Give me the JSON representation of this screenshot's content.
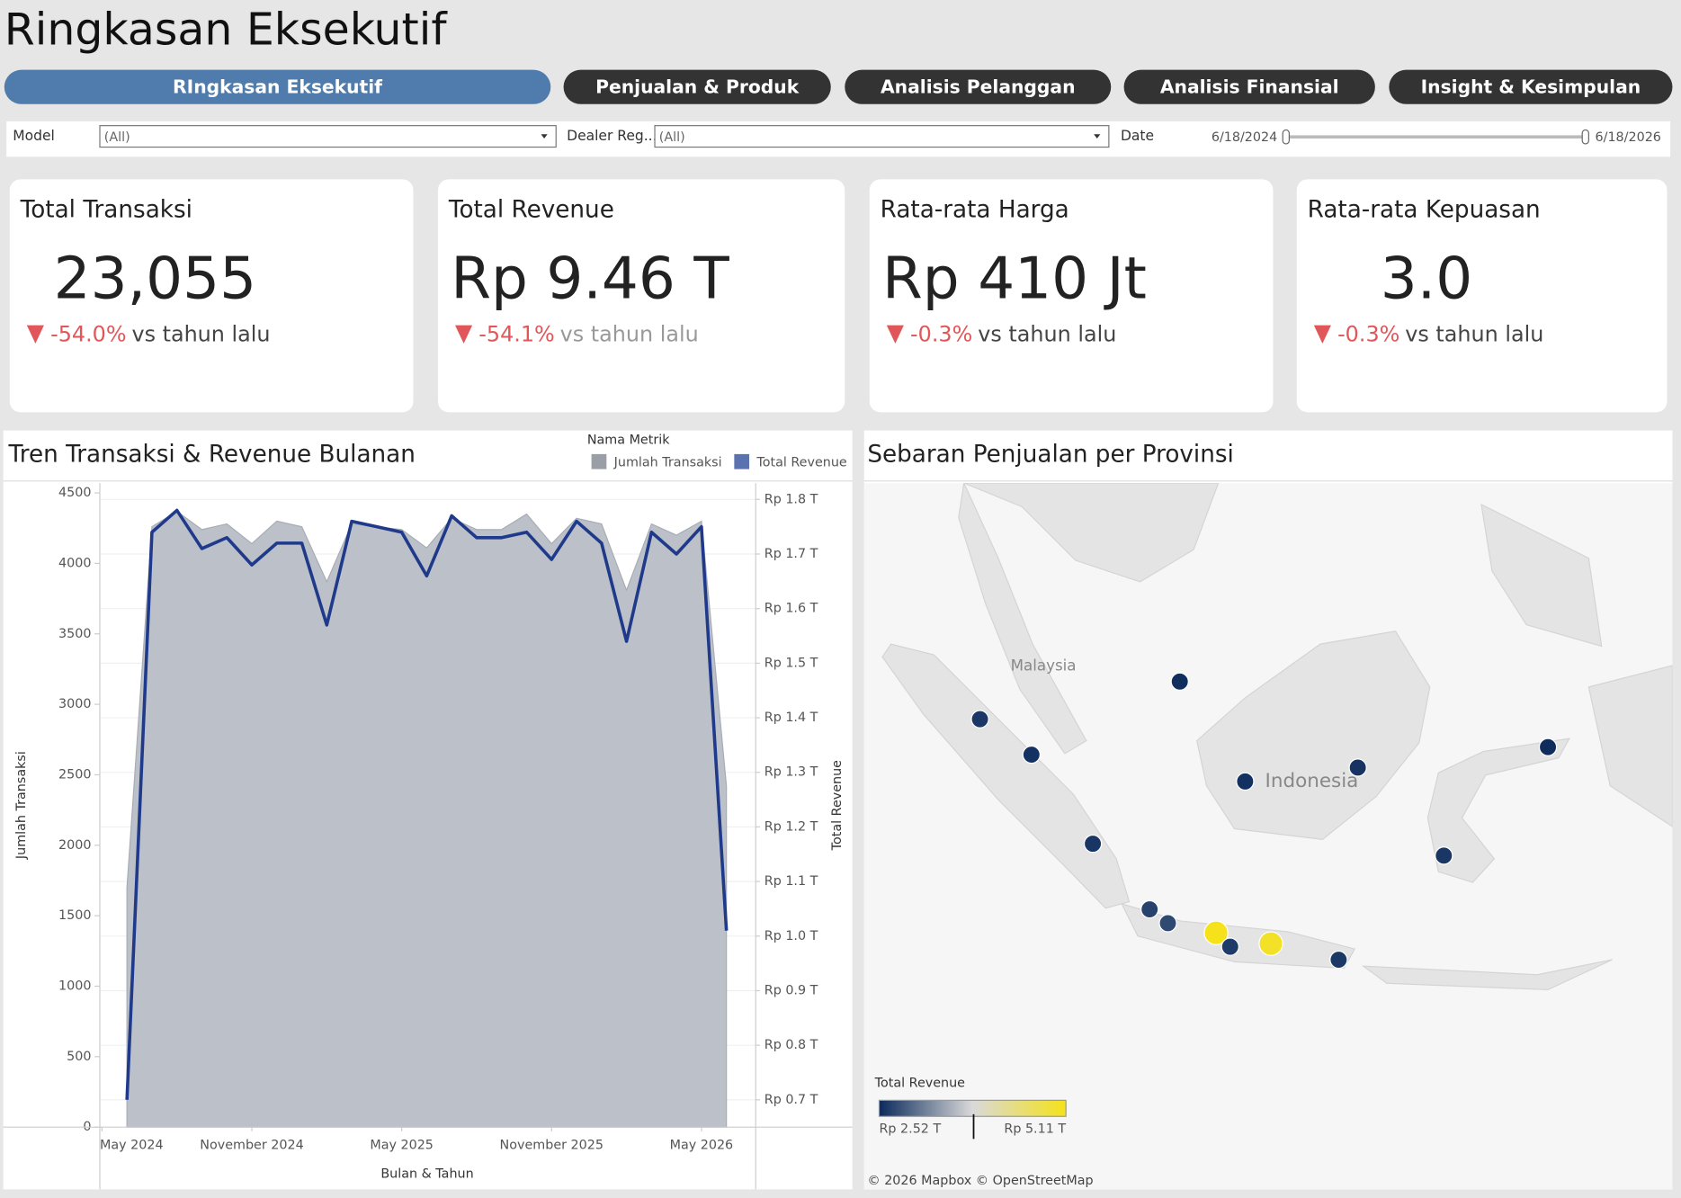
{
  "header": {
    "title": "Ringkasan Eksekutif"
  },
  "tabs": [
    "RIngkasan Eksekutif",
    "Penjualan & Produk",
    "Analisis Pelanggan",
    "Analisis Finansial",
    "Insight & Kesimpulan"
  ],
  "filters": {
    "model_label": "Model",
    "model_value": "(All)",
    "dealer_label": "Dealer Reg...",
    "dealer_value": "(All)",
    "date_label": "Date",
    "date_start": "6/18/2024",
    "date_end": "6/18/2026"
  },
  "kpis": [
    {
      "title": "Total Transaksi",
      "value": "23,055",
      "change": "-54.0%",
      "comparison": "vs tahun lalu"
    },
    {
      "title": "Total Revenue",
      "value": "Rp 9.46 T",
      "change": "-54.1%",
      "comparison": "vs tahun lalu"
    },
    {
      "title": "Rata-rata Harga",
      "value": "Rp 410 Jt",
      "change": "-0.3%",
      "comparison": "vs tahun lalu"
    },
    {
      "title": "Rata-rata Kepuasan",
      "value": "3.0",
      "change": "-0.3%",
      "comparison": "vs tahun lalu"
    }
  ],
  "chart_data": {
    "type": "area",
    "title": "Tren Transaksi & Revenue Bulanan",
    "legend_title": "Nama Metrik",
    "x_label": "Bulan & Tahun",
    "y_label": "Jumlah Transaksi",
    "y2_label": "Total Revenue",
    "x": [
      "2024-06",
      "2024-07",
      "2024-08",
      "2024-09",
      "2024-10",
      "2024-11",
      "2024-12",
      "2025-01",
      "2025-02",
      "2025-03",
      "2025-04",
      "2025-05",
      "2025-06",
      "2025-07",
      "2025-08",
      "2025-09",
      "2025-10",
      "2025-11",
      "2025-12",
      "2026-01",
      "2026-02",
      "2026-03",
      "2026-04",
      "2026-05",
      "2026-06"
    ],
    "xlim": [
      "2024-05",
      "2026-07"
    ],
    "xticks": [
      {
        "value": "2024-05",
        "label": "May 2024"
      },
      {
        "value": "2024-11",
        "label": "November 2024"
      },
      {
        "value": "2025-05",
        "label": "May 2025"
      },
      {
        "value": "2025-11",
        "label": "November 2025"
      },
      {
        "value": "2026-05",
        "label": "May 2026"
      }
    ],
    "ylim": [
      0,
      4570
    ],
    "yticks": [
      0,
      500,
      1000,
      1500,
      2000,
      2500,
      3000,
      3500,
      4000,
      4500
    ],
    "y2lim": [
      0.65,
      1.83
    ],
    "y2ticks": [
      {
        "value": 0.7,
        "label": "Rp 0.7 T"
      },
      {
        "value": 0.8,
        "label": "Rp 0.8 T"
      },
      {
        "value": 0.9,
        "label": "Rp 0.9 T"
      },
      {
        "value": 1.0,
        "label": "Rp 1.0 T"
      },
      {
        "value": 1.1,
        "label": "Rp 1.1 T"
      },
      {
        "value": 1.2,
        "label": "Rp 1.2 T"
      },
      {
        "value": 1.3,
        "label": "Rp 1.3 T"
      },
      {
        "value": 1.4,
        "label": "Rp 1.4 T"
      },
      {
        "value": 1.5,
        "label": "Rp 1.5 T"
      },
      {
        "value": 1.6,
        "label": "Rp 1.6 T"
      },
      {
        "value": 1.7,
        "label": "Rp 1.7 T"
      },
      {
        "value": 1.8,
        "label": "Rp 1.8 T"
      }
    ],
    "grid": true,
    "series": [
      {
        "name": "Jumlah Transaksi",
        "type": "area",
        "color": "#bcc0c8",
        "legend_color": "#9a9ea6",
        "values": [
          1700,
          4260,
          4370,
          4240,
          4280,
          4140,
          4300,
          4260,
          3870,
          4280,
          4260,
          4240,
          4110,
          4320,
          4240,
          4240,
          4350,
          4140,
          4320,
          4280,
          3810,
          4280,
          4200,
          4300,
          2420
        ]
      },
      {
        "name": "Total Revenue",
        "type": "line",
        "axis": "y2",
        "color": "#1f3a8a",
        "legend_color": "#5b72b0",
        "values": [
          0.7,
          1.74,
          1.78,
          1.71,
          1.73,
          1.68,
          1.72,
          1.72,
          1.57,
          1.76,
          1.75,
          1.74,
          1.66,
          1.77,
          1.73,
          1.73,
          1.74,
          1.69,
          1.76,
          1.72,
          1.54,
          1.74,
          1.7,
          1.75,
          1.01
        ]
      }
    ]
  },
  "map": {
    "title": "Sebaran Penjualan per Provinsi",
    "labels": [
      "Malaysia",
      "Indonesia"
    ],
    "attribution": "© 2026 Mapbox  © OpenStreetMap",
    "colorbar": {
      "title": "Total Revenue",
      "min": {
        "value": 2.52,
        "label": "Rp 2.52 T"
      },
      "max": {
        "value": 5.11,
        "label": "Rp 5.11 T"
      },
      "mid": 3.83,
      "colors": [
        "#0b2a5b",
        "#d9d9d9",
        "#f5e21a"
      ]
    },
    "points": [
      {
        "lon": 98.31,
        "lat": 3.07,
        "value": 2.62
      },
      {
        "lon": 100.65,
        "lat": 1.46,
        "value": 2.58
      },
      {
        "lon": 107.39,
        "lat": 4.78,
        "value": 2.55
      },
      {
        "lon": 103.44,
        "lat": -2.59,
        "value": 2.6
      },
      {
        "lon": 110.36,
        "lat": 0.24,
        "value": 2.57
      },
      {
        "lon": 115.48,
        "lat": 0.87,
        "value": 2.59
      },
      {
        "lon": 124.12,
        "lat": 1.8,
        "value": 2.54
      },
      {
        "lon": 119.39,
        "lat": -3.13,
        "value": 2.61
      },
      {
        "lon": 106.02,
        "lat": -5.57,
        "value": 2.7
      },
      {
        "lon": 106.85,
        "lat": -6.2,
        "value": 2.75
      },
      {
        "lon": 109.04,
        "lat": -6.64,
        "value": 5.11
      },
      {
        "lon": 109.68,
        "lat": -7.27,
        "value": 2.65
      },
      {
        "lon": 111.53,
        "lat": -7.13,
        "value": 5.02
      },
      {
        "lon": 114.61,
        "lat": -7.86,
        "value": 2.63
      }
    ]
  }
}
